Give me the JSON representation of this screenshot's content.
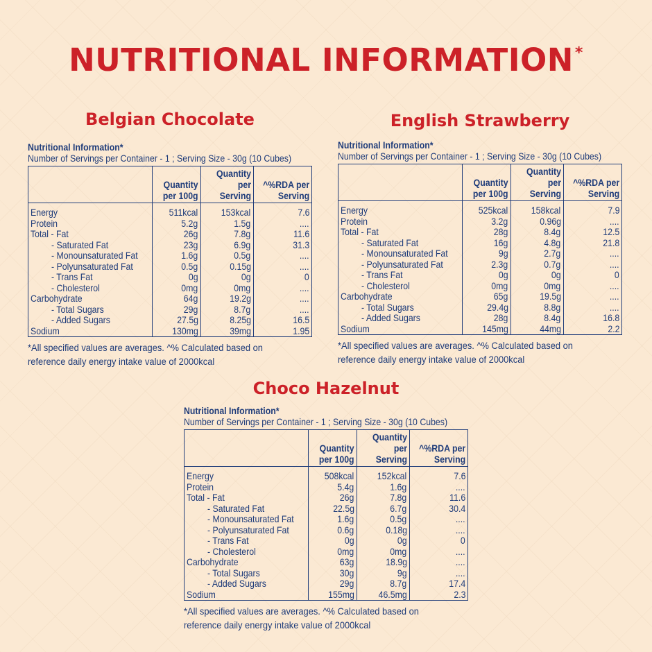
{
  "main_title": "NUTRITIONAL INFORMATION",
  "main_title_mark": "*",
  "colors": {
    "title_red": "#cc2128",
    "text_blue": "#1f3c7a",
    "background": "#fbe9d3"
  },
  "table_heading": "Nutritional Information*",
  "serving_info": "Number of Servings per Container - 1 ;  Serving Size - 30g  (10 Cubes)",
  "columns": [
    {
      "line1": "Quantity",
      "line2": "per 100g"
    },
    {
      "line1": "Quantity",
      "line2": "per Serving"
    },
    {
      "line1": "^%RDA per",
      "line2": "Serving"
    }
  ],
  "footnote_line1": "*All specified values are averages. ^% Calculated based on",
  "footnote_line2": "reference daily energy intake value of 2000kcal",
  "products": [
    {
      "name": "Belgian Chocolate",
      "rows": [
        [
          "Energy",
          "511kcal",
          "153kcal",
          "7.6"
        ],
        [
          "Protein",
          "5.2g",
          "1.5g",
          "...."
        ],
        [
          "Total - Fat",
          "26g",
          "7.8g",
          "11.6"
        ],
        [
          "- Saturated Fat",
          "23g",
          "6.9g",
          "31.3"
        ],
        [
          "- Monounsaturated Fat",
          "1.6g",
          "0.5g",
          "...."
        ],
        [
          "- Polyunsaturated Fat",
          "0.5g",
          "0.15g",
          "...."
        ],
        [
          "- Trans Fat",
          "0g",
          "0g",
          "0"
        ],
        [
          "- Cholesterol",
          "0mg",
          "0mg",
          "...."
        ],
        [
          "Carbohydrate",
          "64g",
          "19.2g",
          "...."
        ],
        [
          "- Total Sugars",
          "29g",
          "8.7g",
          "...."
        ],
        [
          "- Added Sugars",
          "27.5g",
          "8.25g",
          "16.5"
        ],
        [
          "Sodium",
          "130mg",
          "39mg",
          "1.95"
        ]
      ]
    },
    {
      "name": "English Strawberry",
      "rows": [
        [
          "Energy",
          "525kcal",
          "158kcal",
          "7.9"
        ],
        [
          "Protein",
          "3.2g",
          "0.96g",
          "...."
        ],
        [
          "Total - Fat",
          "28g",
          "8.4g",
          "12.5"
        ],
        [
          "- Saturated Fat",
          "16g",
          "4.8g",
          "21.8"
        ],
        [
          "- Monounsaturated Fat",
          "9g",
          "2.7g",
          "...."
        ],
        [
          "- Polyunsaturated Fat",
          "2.3g",
          "0.7g",
          "...."
        ],
        [
          "- Trans Fat",
          "0g",
          "0g",
          "0"
        ],
        [
          "- Cholesterol",
          "0mg",
          "0mg",
          "...."
        ],
        [
          "Carbohydrate",
          "65g",
          "19.5g",
          "...."
        ],
        [
          "- Total Sugars",
          "29.4g",
          "8.8g",
          "...."
        ],
        [
          "- Added Sugars",
          "28g",
          "8.4g",
          "16.8"
        ],
        [
          "Sodium",
          "145mg",
          "44mg",
          "2.2"
        ]
      ]
    },
    {
      "name": "Choco Hazelnut",
      "rows": [
        [
          "Energy",
          "508kcal",
          "152kcal",
          "7.6"
        ],
        [
          "Protein",
          "5.4g",
          "1.6g",
          "...."
        ],
        [
          "Total - Fat",
          "26g",
          "7.8g",
          "11.6"
        ],
        [
          "- Saturated Fat",
          "22.5g",
          "6.7g",
          "30.4"
        ],
        [
          "- Monounsaturated Fat",
          "1.6g",
          "0.5g",
          "...."
        ],
        [
          "- Polyunsaturated Fat",
          "0.6g",
          "0.18g",
          "...."
        ],
        [
          "- Trans Fat",
          "0g",
          "0g",
          "0"
        ],
        [
          "- Cholesterol",
          "0mg",
          "0mg",
          "...."
        ],
        [
          "Carbohydrate",
          "63g",
          "18.9g",
          "...."
        ],
        [
          "- Total Sugars",
          "30g",
          "9g",
          "...."
        ],
        [
          "- Added Sugars",
          "29g",
          "8.7g",
          "17.4"
        ],
        [
          "Sodium",
          "155mg",
          "46.5mg",
          "2.3"
        ]
      ]
    }
  ]
}
